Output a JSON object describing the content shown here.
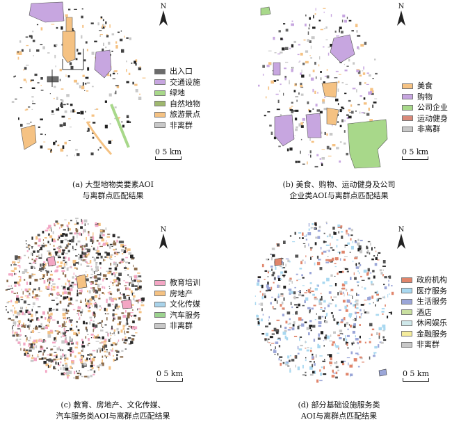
{
  "north_label": "N",
  "scale_zero": "0",
  "scale_km": "5 km",
  "panels": [
    {
      "caption_line1": "(a) 大型地物类要素AOI",
      "caption_line2": "与离群点匹配结果",
      "legend": [
        {
          "label": "出入口",
          "color": "#6b6b6b"
        },
        {
          "label": "交通设施",
          "color": "#c7a6e0"
        },
        {
          "label": "绿地",
          "color": "#a8d88a"
        },
        {
          "label": "自然地物",
          "color": "#9fb86f"
        },
        {
          "label": "旅游景点",
          "color": "#f5c283"
        },
        {
          "label": "非离群",
          "color": "#c8c8c8"
        }
      ]
    },
    {
      "caption_line1": "(b) 美食、购物、运动健身及公司",
      "caption_line2": "企业类AOI与离群点匹配结果",
      "legend": [
        {
          "label": "美食",
          "color": "#f5c283"
        },
        {
          "label": "购物",
          "color": "#c7a6e0"
        },
        {
          "label": "公司企业",
          "color": "#a8d88a"
        },
        {
          "label": "运动健身",
          "color": "#d98a7a"
        },
        {
          "label": "非离群",
          "color": "#c8c8c8"
        }
      ]
    },
    {
      "caption_line1": "(c) 教育、房地产、文化传媒、",
      "caption_line2": "汽车服务类AOI与离群点匹配结果",
      "legend": [
        {
          "label": "教育培训",
          "color": "#f3a6c4"
        },
        {
          "label": "房地产",
          "color": "#f5c283"
        },
        {
          "label": "文化传媒",
          "color": "#a9d3ea"
        },
        {
          "label": "汽车服务",
          "color": "#9cd38f"
        },
        {
          "label": "非离群",
          "color": "#c8c8c8"
        }
      ]
    },
    {
      "caption_line1": "(d) 部分基础设施服务类",
      "caption_line2": "AOI与离群点匹配结果",
      "legend": [
        {
          "label": "政府机构",
          "color": "#e0856b"
        },
        {
          "label": "医疗服务",
          "color": "#a9d8f0"
        },
        {
          "label": "生活服务",
          "color": "#9ba6d8"
        },
        {
          "label": "酒店",
          "color": "#c9dfa0"
        },
        {
          "label": "休闲娱乐",
          "color": "#cfe8ea"
        },
        {
          "label": "金融服务",
          "color": "#f5ec9c"
        },
        {
          "label": "非离群",
          "color": "#c8c8c8"
        }
      ]
    }
  ]
}
